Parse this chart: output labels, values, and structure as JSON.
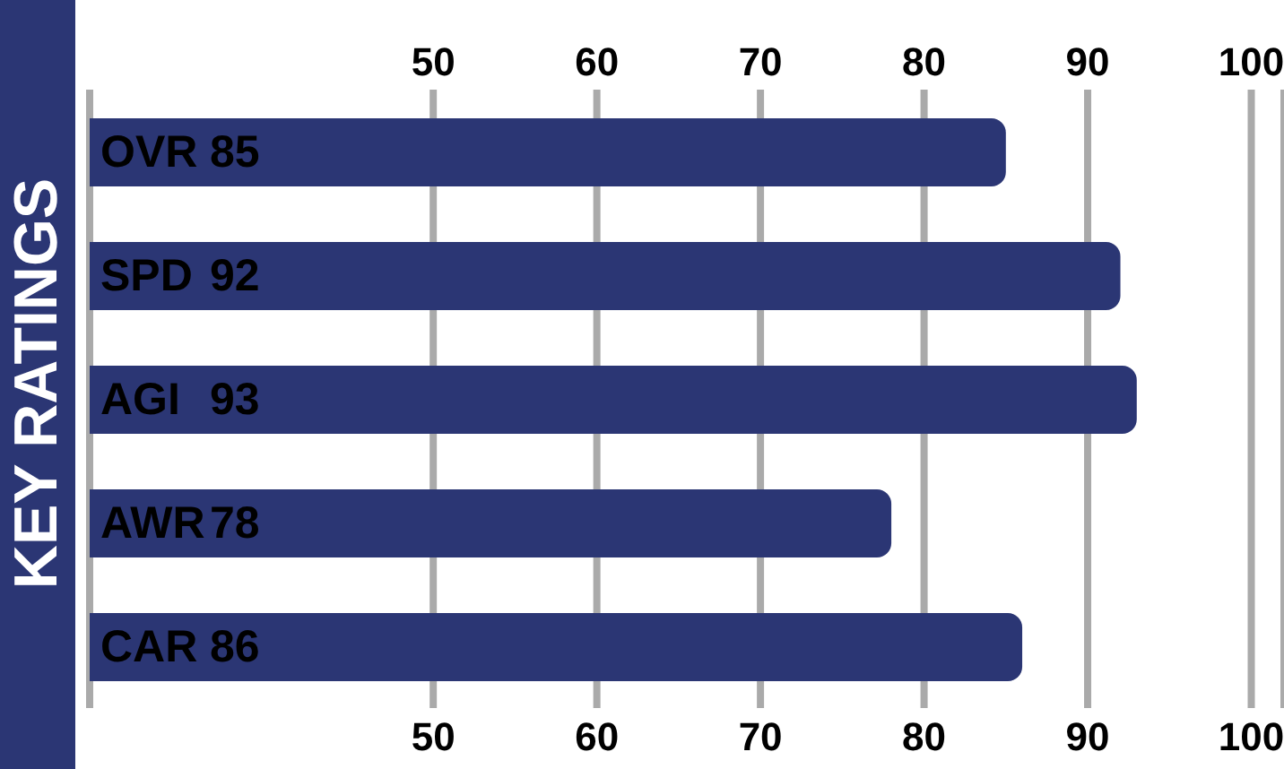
{
  "chart_data": {
    "type": "bar",
    "orientation": "horizontal",
    "ylabel": "KEY RATINGS",
    "categories": [
      "OVR",
      "SPD",
      "AGI",
      "AWR",
      "CAR"
    ],
    "values": [
      85,
      92,
      93,
      78,
      86
    ],
    "color": "#2b3674",
    "data_labels": true,
    "xlim": [
      29,
      102
    ],
    "xticks": [
      50,
      60,
      70,
      80,
      90,
      100
    ],
    "x2lim": [
      29,
      102
    ],
    "x2ticks": [
      50,
      60,
      70,
      80,
      90,
      100
    ],
    "grid": "x"
  }
}
